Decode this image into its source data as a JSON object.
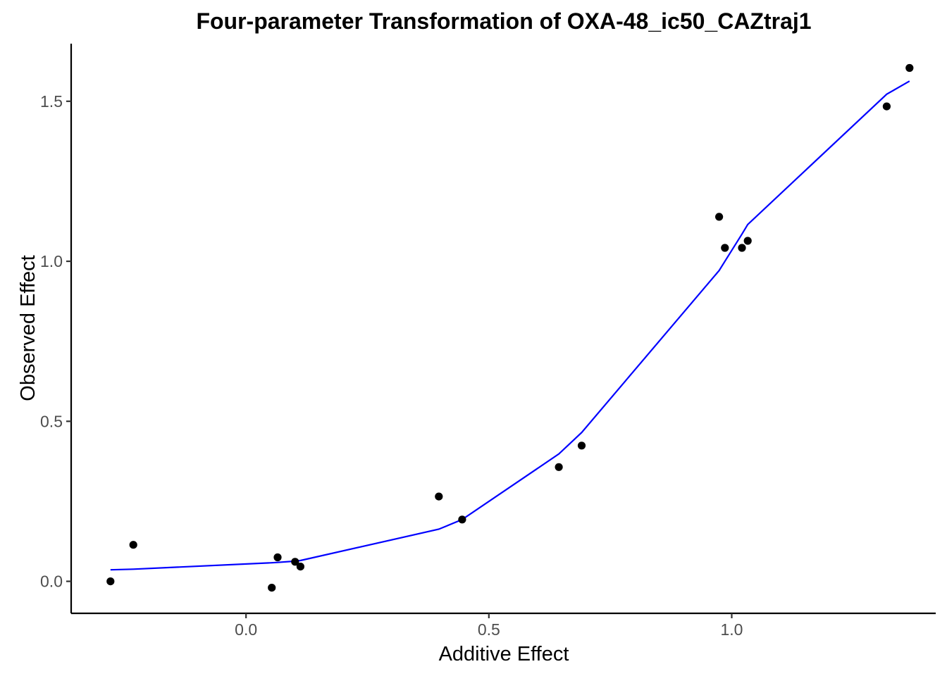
{
  "chart_data": {
    "type": "scatter",
    "title": "Four-parameter Transformation of OXA-48_ic50_CAZtraj1",
    "xlabel": "Additive Effect",
    "ylabel": "Observed Effect",
    "xlim": [
      -0.36,
      1.42
    ],
    "ylim": [
      -0.1,
      1.68
    ],
    "xticks": [
      0.0,
      0.5,
      1.0
    ],
    "yticks": [
      0.0,
      0.5,
      1.0,
      1.5
    ],
    "xtick_labels": [
      "0.0",
      "0.5",
      "1.0"
    ],
    "ytick_labels": [
      "0.0",
      "0.5",
      "1.0",
      "1.5"
    ],
    "grid": false,
    "series": [
      {
        "kind": "points",
        "color": "#000000",
        "points": [
          {
            "x": -0.279,
            "y": 0.0
          },
          {
            "x": -0.232,
            "y": 0.114
          },
          {
            "x": 0.053,
            "y": -0.02
          },
          {
            "x": 0.065,
            "y": 0.075
          },
          {
            "x": 0.101,
            "y": 0.061
          },
          {
            "x": 0.112,
            "y": 0.046
          },
          {
            "x": 0.397,
            "y": 0.265
          },
          {
            "x": 0.445,
            "y": 0.193
          },
          {
            "x": 0.644,
            "y": 0.357
          },
          {
            "x": 0.691,
            "y": 0.424
          },
          {
            "x": 0.974,
            "y": 1.139
          },
          {
            "x": 0.986,
            "y": 1.042
          },
          {
            "x": 1.021,
            "y": 1.042
          },
          {
            "x": 1.033,
            "y": 1.064
          },
          {
            "x": 1.319,
            "y": 1.484
          },
          {
            "x": 1.366,
            "y": 1.604
          }
        ]
      },
      {
        "kind": "line",
        "color": "#0000ff",
        "points": [
          {
            "x": -0.279,
            "y": 0.036
          },
          {
            "x": -0.232,
            "y": 0.038
          },
          {
            "x": 0.053,
            "y": 0.058
          },
          {
            "x": 0.065,
            "y": 0.059
          },
          {
            "x": 0.101,
            "y": 0.063
          },
          {
            "x": 0.112,
            "y": 0.065
          },
          {
            "x": 0.397,
            "y": 0.163
          },
          {
            "x": 0.445,
            "y": 0.193
          },
          {
            "x": 0.644,
            "y": 0.398
          },
          {
            "x": 0.691,
            "y": 0.465
          },
          {
            "x": 0.974,
            "y": 0.971
          },
          {
            "x": 0.986,
            "y": 1.0
          },
          {
            "x": 1.021,
            "y": 1.085
          },
          {
            "x": 1.033,
            "y": 1.115
          },
          {
            "x": 1.319,
            "y": 1.522
          },
          {
            "x": 1.366,
            "y": 1.563
          }
        ]
      }
    ]
  }
}
